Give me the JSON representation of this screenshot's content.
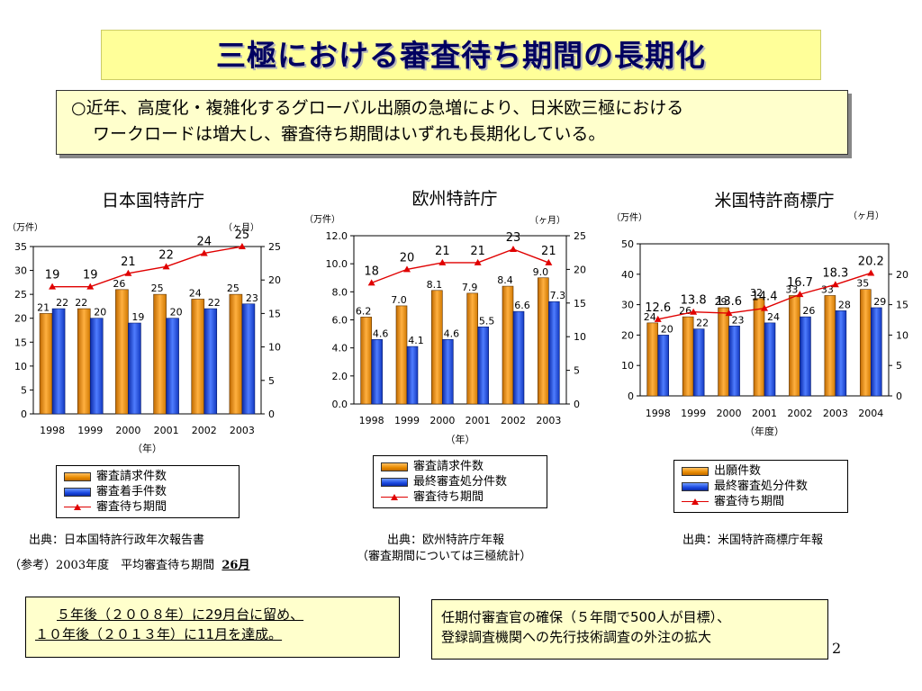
{
  "title": "三極における審査待ち期間の長期化",
  "intro": {
    "line1": "○近年、高度化・複雑化するグローバル出願の急増により、日米欧三極における",
    "line2": "ワークロードは増大し、審査待ち期間はいずれも長期化している。"
  },
  "chart_data": [
    {
      "type": "bar",
      "title": "日本国特許庁",
      "categories": [
        "1998",
        "1999",
        "2000",
        "2001",
        "2002",
        "2003"
      ],
      "xlabel": "（年）",
      "left_axis_unit": "（万件）",
      "right_axis_unit": "（ヶ月）",
      "ylim": [
        0,
        35
      ],
      "y_ticks": [
        0,
        5,
        10,
        15,
        20,
        25,
        30,
        35
      ],
      "y2lim": [
        0,
        25
      ],
      "y2_ticks": [
        0,
        5,
        10,
        15,
        20,
        25
      ],
      "series": [
        {
          "name": "審査請求件数",
          "kind": "bar",
          "color": "#e88a00",
          "values": [
            21,
            22,
            26,
            25,
            24,
            25
          ],
          "labels": [
            "21",
            "22",
            "26",
            "25",
            "24",
            "25"
          ]
        },
        {
          "name": "審査着手件数",
          "kind": "bar",
          "color": "#1a48e0",
          "values": [
            22,
            20,
            19,
            20,
            22,
            23
          ],
          "labels": [
            "22",
            "20",
            "19",
            "20",
            "22",
            "23"
          ]
        },
        {
          "name": "審査待ち期間",
          "kind": "line",
          "axis": "right",
          "color": "#e00000",
          "values": [
            19,
            19,
            21,
            22,
            24,
            25
          ],
          "labels": [
            "19",
            "19",
            "21",
            "22",
            "24",
            "25"
          ]
        }
      ],
      "source": "出典：日本国特許行政年次報告書"
    },
    {
      "type": "bar",
      "title": "欧州特許庁",
      "categories": [
        "1998",
        "1999",
        "2000",
        "2001",
        "2002",
        "2003"
      ],
      "xlabel": "（年）",
      "left_axis_unit": "（万件）",
      "right_axis_unit": "（ヶ月）",
      "ylim": [
        0,
        12
      ],
      "y_ticks": [
        "0.0",
        "2.0",
        "4.0",
        "6.0",
        "8.0",
        "10.0",
        "12.0"
      ],
      "y2lim": [
        0,
        25
      ],
      "y2_ticks": [
        0,
        5,
        10,
        15,
        20,
        25
      ],
      "series": [
        {
          "name": "審査請求件数",
          "kind": "bar",
          "color": "#e88a00",
          "values": [
            6.2,
            7.0,
            8.1,
            7.9,
            8.4,
            9.0
          ],
          "labels": [
            "6.2",
            "7.0",
            "8.1",
            "7.9",
            "8.4",
            "9.0"
          ]
        },
        {
          "name": "最終審査処分件数",
          "kind": "bar",
          "color": "#1a48e0",
          "values": [
            4.6,
            4.1,
            4.6,
            5.5,
            6.6,
            7.3
          ],
          "labels": [
            "4.6",
            "4.1",
            "4.6",
            "5.5",
            "6.6",
            "7.3"
          ]
        },
        {
          "name": "審査待ち期間",
          "kind": "line",
          "axis": "right",
          "color": "#e00000",
          "values": [
            18,
            20,
            21,
            21,
            23,
            21
          ],
          "labels": [
            "18",
            "20",
            "21",
            "21",
            "23",
            "21"
          ]
        }
      ],
      "source": "出典：欧州特許庁年報",
      "source_note": "（審査期間については三極統計）"
    },
    {
      "type": "bar",
      "title": "米国特許商標庁",
      "categories": [
        "1998",
        "1999",
        "2000",
        "2001",
        "2002",
        "2003",
        "2004"
      ],
      "xlabel": "（年度）",
      "left_axis_unit": "（万件）",
      "right_axis_unit": "（ヶ月）",
      "ylim": [
        0,
        50
      ],
      "y_ticks": [
        0,
        10,
        20,
        30,
        40,
        50
      ],
      "y2lim": [
        0,
        25
      ],
      "y2_ticks": [
        0,
        5,
        10,
        15,
        20
      ],
      "series": [
        {
          "name": "出願件数",
          "kind": "bar",
          "color": "#e88a00",
          "values": [
            24,
            26,
            29,
            32,
            33,
            33,
            35
          ],
          "labels": [
            "24",
            "26",
            "29",
            "32",
            "33",
            "33",
            "35"
          ]
        },
        {
          "name": "最終審査処分件数",
          "kind": "bar",
          "color": "#1a48e0",
          "values": [
            20,
            22,
            23,
            24,
            26,
            28,
            29
          ],
          "labels": [
            "20",
            "22",
            "23",
            "24",
            "26",
            "28",
            "29"
          ]
        },
        {
          "name": "審査待ち期間",
          "kind": "line",
          "axis": "right",
          "color": "#e00000",
          "values": [
            12.6,
            13.8,
            13.6,
            14.4,
            16.7,
            18.3,
            20.2
          ],
          "labels": [
            "12.6",
            "13.8",
            "13.6",
            "14.4",
            "16.7",
            "18.3",
            "20.2"
          ]
        }
      ],
      "source": "出典：米国特許商標庁年報"
    }
  ],
  "reference": {
    "prefix": "（参考）",
    "year": "2003",
    "middle": "年度　平均審査待ち期間",
    "value": "26月"
  },
  "note_left": {
    "line1": "５年後（２００８年）に29月台に留め、",
    "line2": "１０年後（２０１３年）に11月を達成。"
  },
  "note_right": {
    "line1": "任期付審査官の確保（５年間で500人が目標）、",
    "line2": "登録調査機関への先行技術調査の外注の拡大"
  },
  "page_number": "2"
}
